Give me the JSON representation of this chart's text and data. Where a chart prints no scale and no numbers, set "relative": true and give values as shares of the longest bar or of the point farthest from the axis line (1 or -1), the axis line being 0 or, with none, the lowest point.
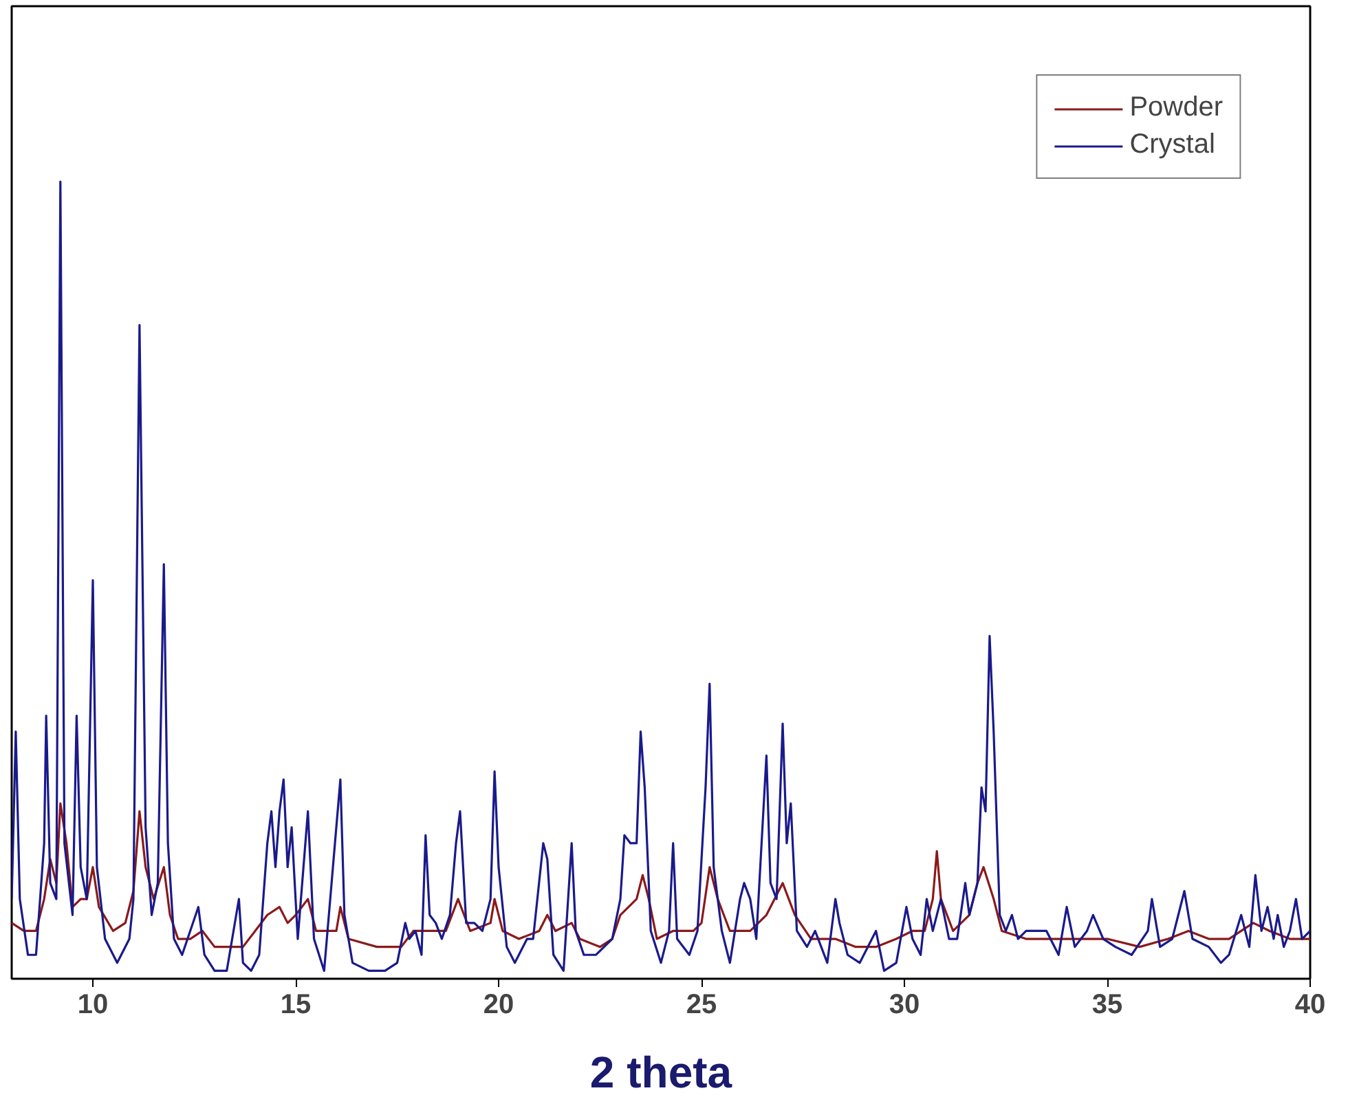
{
  "chart_data": {
    "type": "line",
    "relative": true,
    "xlabel": "2 theta",
    "xlim": [
      8,
      40
    ],
    "xticks": [
      10,
      15,
      20,
      25,
      30,
      35,
      40
    ],
    "tick_labels": "x",
    "grid": false,
    "legend": "top right",
    "line_style": "solid",
    "series": [
      {
        "name": "Powder",
        "color": "#8b1a1a",
        "x": [
          8.0,
          8.3,
          8.6,
          8.8,
          8.95,
          9.1,
          9.2,
          9.35,
          9.5,
          9.7,
          9.85,
          10.0,
          10.15,
          10.5,
          10.8,
          11.0,
          11.15,
          11.3,
          11.5,
          11.75,
          11.9,
          12.1,
          12.4,
          12.7,
          13.0,
          13.5,
          13.7,
          14.0,
          14.3,
          14.6,
          14.8,
          15.0,
          15.3,
          15.5,
          16.0,
          16.1,
          16.3,
          17.0,
          17.6,
          17.9,
          18.3,
          18.7,
          19.0,
          19.3,
          19.8,
          19.9,
          20.1,
          20.5,
          21.0,
          21.2,
          21.4,
          21.8,
          22.0,
          22.5,
          22.8,
          23.0,
          23.4,
          23.55,
          23.7,
          23.9,
          24.3,
          24.8,
          25.0,
          25.2,
          25.4,
          25.7,
          26.2,
          26.6,
          27.0,
          27.3,
          27.7,
          28.3,
          28.8,
          29.3,
          29.8,
          30.2,
          30.5,
          30.7,
          30.8,
          30.9,
          31.2,
          31.6,
          31.8,
          31.95,
          32.2,
          32.4,
          33.0,
          34.0,
          35.0,
          35.8,
          36.5,
          37.0,
          37.5,
          38.0,
          38.3,
          38.6,
          39.0,
          39.5,
          40.0
        ],
        "values": [
          0.07,
          0.06,
          0.06,
          0.1,
          0.15,
          0.12,
          0.22,
          0.17,
          0.09,
          0.1,
          0.1,
          0.14,
          0.09,
          0.06,
          0.07,
          0.11,
          0.21,
          0.14,
          0.1,
          0.14,
          0.08,
          0.05,
          0.05,
          0.06,
          0.04,
          0.04,
          0.04,
          0.06,
          0.08,
          0.09,
          0.07,
          0.08,
          0.1,
          0.06,
          0.06,
          0.09,
          0.05,
          0.04,
          0.04,
          0.06,
          0.06,
          0.06,
          0.1,
          0.06,
          0.07,
          0.1,
          0.06,
          0.05,
          0.06,
          0.08,
          0.06,
          0.07,
          0.05,
          0.04,
          0.05,
          0.08,
          0.1,
          0.13,
          0.1,
          0.05,
          0.06,
          0.06,
          0.07,
          0.14,
          0.1,
          0.06,
          0.06,
          0.08,
          0.12,
          0.08,
          0.05,
          0.05,
          0.04,
          0.04,
          0.05,
          0.06,
          0.06,
          0.1,
          0.16,
          0.1,
          0.06,
          0.08,
          0.12,
          0.14,
          0.1,
          0.06,
          0.05,
          0.05,
          0.05,
          0.04,
          0.05,
          0.06,
          0.05,
          0.05,
          0.06,
          0.07,
          0.06,
          0.05,
          0.05
        ]
      },
      {
        "name": "Crystal",
        "color": "#1a1a8c",
        "x": [
          8.0,
          8.1,
          8.2,
          8.4,
          8.6,
          8.8,
          8.85,
          8.95,
          9.1,
          9.2,
          9.3,
          9.5,
          9.6,
          9.7,
          9.85,
          10.0,
          10.1,
          10.3,
          10.6,
          10.9,
          11.0,
          11.15,
          11.3,
          11.45,
          11.6,
          11.75,
          11.85,
          12.0,
          12.2,
          12.4,
          12.6,
          12.75,
          13.0,
          13.3,
          13.6,
          13.7,
          13.9,
          14.1,
          14.3,
          14.4,
          14.5,
          14.6,
          14.7,
          14.8,
          14.9,
          15.05,
          15.3,
          15.45,
          15.7,
          16.1,
          16.2,
          16.4,
          16.8,
          17.2,
          17.5,
          17.7,
          17.8,
          17.95,
          18.1,
          18.2,
          18.3,
          18.45,
          18.6,
          18.8,
          18.95,
          19.05,
          19.2,
          19.4,
          19.6,
          19.8,
          19.9,
          20.0,
          20.2,
          20.4,
          20.7,
          20.85,
          21.1,
          21.2,
          21.35,
          21.6,
          21.8,
          21.9,
          22.1,
          22.4,
          22.8,
          23.0,
          23.1,
          23.25,
          23.4,
          23.5,
          23.6,
          23.75,
          24.0,
          24.2,
          24.3,
          24.4,
          24.7,
          24.9,
          25.1,
          25.2,
          25.3,
          25.5,
          25.7,
          25.95,
          26.05,
          26.2,
          26.35,
          26.6,
          26.7,
          26.85,
          27.0,
          27.1,
          27.2,
          27.35,
          27.6,
          27.8,
          28.1,
          28.3,
          28.4,
          28.6,
          28.9,
          29.3,
          29.5,
          29.8,
          30.05,
          30.2,
          30.4,
          30.55,
          30.7,
          30.9,
          31.1,
          31.3,
          31.5,
          31.6,
          31.8,
          31.9,
          32.0,
          32.1,
          32.2,
          32.35,
          32.5,
          32.65,
          32.8,
          33.0,
          33.2,
          33.5,
          33.8,
          34.0,
          34.2,
          34.5,
          34.65,
          34.9,
          35.2,
          35.6,
          36.0,
          36.1,
          36.3,
          36.6,
          36.9,
          37.1,
          37.5,
          37.8,
          38.0,
          38.3,
          38.5,
          38.65,
          38.8,
          38.95,
          39.1,
          39.2,
          39.35,
          39.5,
          39.65,
          39.8,
          40.0
        ],
        "values": [
          0.1,
          0.31,
          0.1,
          0.03,
          0.03,
          0.17,
          0.33,
          0.12,
          0.1,
          1.0,
          0.17,
          0.08,
          0.33,
          0.14,
          0.1,
          0.5,
          0.14,
          0.05,
          0.02,
          0.05,
          0.1,
          0.82,
          0.19,
          0.08,
          0.12,
          0.52,
          0.17,
          0.05,
          0.03,
          0.06,
          0.09,
          0.03,
          0.01,
          0.01,
          0.1,
          0.02,
          0.01,
          0.03,
          0.17,
          0.21,
          0.14,
          0.21,
          0.25,
          0.14,
          0.19,
          0.05,
          0.21,
          0.05,
          0.01,
          0.25,
          0.08,
          0.02,
          0.01,
          0.01,
          0.02,
          0.07,
          0.05,
          0.06,
          0.03,
          0.18,
          0.08,
          0.07,
          0.05,
          0.08,
          0.17,
          0.21,
          0.07,
          0.07,
          0.06,
          0.1,
          0.26,
          0.14,
          0.04,
          0.02,
          0.05,
          0.05,
          0.17,
          0.15,
          0.03,
          0.01,
          0.17,
          0.06,
          0.03,
          0.03,
          0.05,
          0.1,
          0.18,
          0.17,
          0.17,
          0.31,
          0.24,
          0.06,
          0.02,
          0.06,
          0.17,
          0.05,
          0.03,
          0.06,
          0.24,
          0.37,
          0.14,
          0.06,
          0.02,
          0.1,
          0.12,
          0.1,
          0.05,
          0.28,
          0.12,
          0.1,
          0.32,
          0.17,
          0.22,
          0.06,
          0.04,
          0.06,
          0.02,
          0.1,
          0.07,
          0.03,
          0.02,
          0.06,
          0.01,
          0.02,
          0.09,
          0.05,
          0.03,
          0.1,
          0.06,
          0.1,
          0.05,
          0.05,
          0.12,
          0.08,
          0.12,
          0.24,
          0.21,
          0.43,
          0.31,
          0.08,
          0.06,
          0.08,
          0.05,
          0.06,
          0.06,
          0.06,
          0.03,
          0.09,
          0.04,
          0.06,
          0.08,
          0.05,
          0.04,
          0.03,
          0.06,
          0.1,
          0.04,
          0.05,
          0.11,
          0.05,
          0.04,
          0.02,
          0.03,
          0.08,
          0.04,
          0.13,
          0.06,
          0.09,
          0.05,
          0.08,
          0.04,
          0.06,
          0.1,
          0.05,
          0.06
        ]
      }
    ]
  }
}
